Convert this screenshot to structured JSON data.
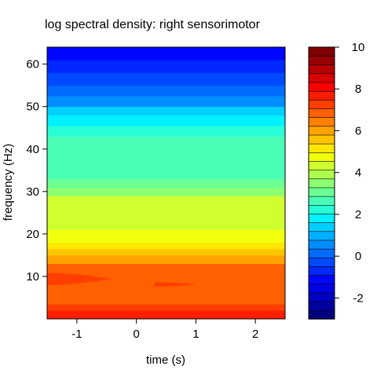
{
  "chart_data": {
    "type": "heatmap",
    "title": "log spectral density: right sensorimotor",
    "xlabel": "time (s)",
    "ylabel": "frequency (Hz)",
    "xlim": [
      -1.5,
      2.5
    ],
    "ylim": [
      0,
      64
    ],
    "xticks": [
      -1,
      0,
      1,
      2
    ],
    "yticks": [
      10,
      20,
      30,
      40,
      50,
      60
    ],
    "colorbar": {
      "range": [
        -3,
        10
      ],
      "ticks": [
        -2,
        0,
        2,
        4,
        6,
        8,
        10
      ],
      "levels": 26,
      "colors": [
        "#00007F",
        "#0000A0",
        "#0000C2",
        "#0000E3",
        "#0005FF",
        "#0028FF",
        "#004AFF",
        "#006BFF",
        "#008DFF",
        "#00AEFF",
        "#00D0FF",
        "#00F1FF",
        "#28FFD7",
        "#4AFFB5",
        "#6BFF93",
        "#8DFF72",
        "#AEFF50",
        "#D0FF2F",
        "#F1FF0D",
        "#FFE600",
        "#FFC400",
        "#FFA300",
        "#FF8100",
        "#FF6000",
        "#FF3E00",
        "#FF1D00",
        "#FB0000",
        "#D90000",
        "#B70000",
        "#960000",
        "#7F0000"
      ]
    },
    "bands": [
      {
        "ymin": 0,
        "ymax": 2,
        "value": 7.7
      },
      {
        "ymin": 2,
        "ymax": 3.5,
        "value": 7.2
      },
      {
        "ymin": 3.5,
        "ymax": 6,
        "value": 6.7
      },
      {
        "ymin": 6,
        "ymax": 13,
        "value": 6.7
      },
      {
        "ymin": 13,
        "ymax": 15,
        "value": 6.2
      },
      {
        "ymin": 15,
        "ymax": 16.5,
        "value": 5.7
      },
      {
        "ymin": 16.5,
        "ymax": 18,
        "value": 5.2
      },
      {
        "ymin": 18,
        "ymax": 21,
        "value": 4.7
      },
      {
        "ymin": 21,
        "ymax": 29,
        "value": 4.2
      },
      {
        "ymin": 29,
        "ymax": 31,
        "value": 3.7
      },
      {
        "ymin": 31,
        "ymax": 33,
        "value": 3.2
      },
      {
        "ymin": 33,
        "ymax": 43,
        "value": 2.7
      },
      {
        "ymin": 43,
        "ymax": 45.5,
        "value": 2.2
      },
      {
        "ymin": 45.5,
        "ymax": 48,
        "value": 1.7
      },
      {
        "ymin": 48,
        "ymax": 50,
        "value": 1.2
      },
      {
        "ymin": 50,
        "ymax": 52.5,
        "value": 0.7
      },
      {
        "ymin": 52.5,
        "ymax": 55,
        "value": 0.2
      },
      {
        "ymin": 55,
        "ymax": 58,
        "value": -0.3
      },
      {
        "ymin": 58,
        "ymax": 61,
        "value": -0.8
      },
      {
        "ymin": 61,
        "ymax": 64,
        "value": -1.3
      }
    ],
    "highlights": [
      {
        "x": [
          -1.5,
          -0.4
        ],
        "yc": 9.4,
        "halfh": 1.4,
        "value": 7.2
      },
      {
        "x": [
          0.3,
          1.0
        ],
        "yc": 8.1,
        "halfh": 0.5,
        "value": 7.2
      }
    ]
  }
}
